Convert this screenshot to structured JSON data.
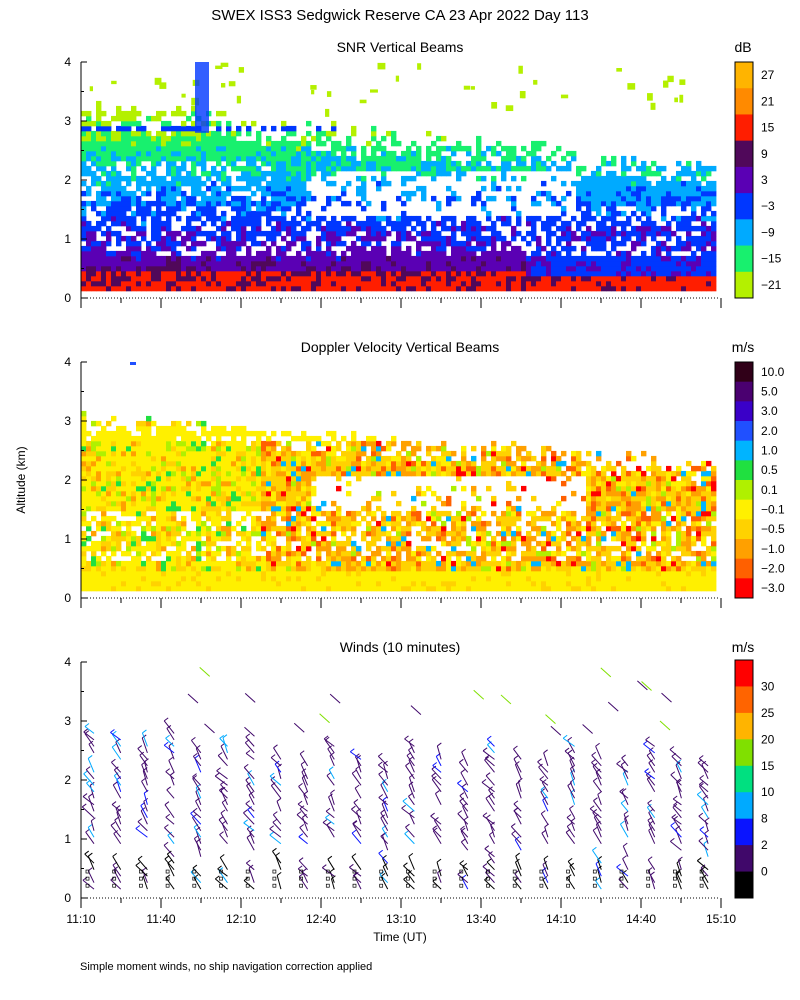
{
  "title": "SWEX ISS3 Sedgwick Reserve CA  23 Apr 2022 Day 113",
  "ylabel": "Altitude (km)",
  "xlabel": "Time (UT)",
  "footnote": "Simple moment winds, no ship navigation correction applied",
  "chart_data": [
    {
      "type": "heatmap",
      "title": "SNR Vertical Beams",
      "colorbar_unit": "dB",
      "colorbar_labels": [
        "27",
        "21",
        "15",
        "9",
        "3",
        "−3",
        "−9",
        "−15",
        "−21"
      ],
      "colorbar_colors": [
        "#ffb400",
        "#ff8a00",
        "#ff1e00",
        "#50085a",
        "#5a00b4",
        "#0037ff",
        "#00aaff",
        "#18f06e",
        "#b4f000"
      ],
      "yticks": [
        "4",
        "3",
        "2",
        "1",
        "0"
      ],
      "ylim": [
        0,
        4
      ],
      "x": [
        "11:10",
        "11:40",
        "12:10",
        "12:40",
        "13:10",
        "13:40",
        "14:10",
        "14:40",
        "15:10"
      ],
      "layers": [
        {
          "level": "9",
          "alt_range_km": [
            0.1,
            0.5
          ]
        },
        {
          "level": "3",
          "alt_range_km": [
            0.4,
            1.2
          ]
        },
        {
          "level": "−3",
          "alt_range_km": [
            0.5,
            1.4
          ]
        },
        {
          "level": "−9",
          "alt_range_km": [
            1.0,
            2.3
          ]
        },
        {
          "level": "−15",
          "alt_range_km": [
            1.5,
            2.6
          ]
        },
        {
          "level": "−21",
          "alt_range_km": [
            2.0,
            3.2
          ]
        }
      ]
    },
    {
      "type": "heatmap",
      "title": "Doppler Velocity Vertical Beams",
      "colorbar_unit": "m/s",
      "colorbar_labels": [
        "10.0",
        "5.0",
        "3.0",
        "2.0",
        "1.0",
        "0.5",
        "0.1",
        "−0.1",
        "−0.5",
        "−1.0",
        "−2.0",
        "−3.0"
      ],
      "colorbar_colors": [
        "#300018",
        "#4a0070",
        "#3a00c8",
        "#2050ff",
        "#00b4ff",
        "#20e040",
        "#b0f000",
        "#fff000",
        "#ffd200",
        "#ffa000",
        "#ff6000",
        "#ff0000"
      ],
      "yticks": [
        "4",
        "3",
        "2",
        "1",
        "0"
      ],
      "ylim": [
        0,
        4
      ],
      "x": [
        "11:10",
        "11:40",
        "12:10",
        "12:40",
        "13:10",
        "13:40",
        "14:10",
        "14:40",
        "15:10"
      ]
    },
    {
      "type": "scatter",
      "title": "Winds (10 minutes)",
      "colorbar_unit": "m/s",
      "colorbar_labels": [
        "30",
        "25",
        "20",
        "15",
        "10",
        "8",
        "2",
        "0"
      ],
      "colorbar_colors": [
        "#ff0000",
        "#ff6400",
        "#ffb400",
        "#80e000",
        "#00e080",
        "#00aaff",
        "#0a14ff",
        "#40086a",
        "#000000"
      ],
      "yticks": [
        "4",
        "3",
        "2",
        "1",
        "0"
      ],
      "ylim": [
        0,
        4
      ],
      "x": [
        "11:10",
        "11:40",
        "12:10",
        "12:40",
        "13:10",
        "13:40",
        "14:10",
        "14:40",
        "15:10"
      ],
      "profile_times": [
        "11:15",
        "11:25",
        "11:35",
        "11:45",
        "11:55",
        "12:05",
        "12:15",
        "12:25",
        "12:35",
        "12:45",
        "12:55",
        "13:05",
        "13:15",
        "13:25",
        "13:35",
        "13:45",
        "13:55",
        "14:05",
        "14:15",
        "14:25",
        "14:35",
        "14:45",
        "14:55",
        "15:05"
      ],
      "typical_speed_ms": "2–8"
    }
  ]
}
